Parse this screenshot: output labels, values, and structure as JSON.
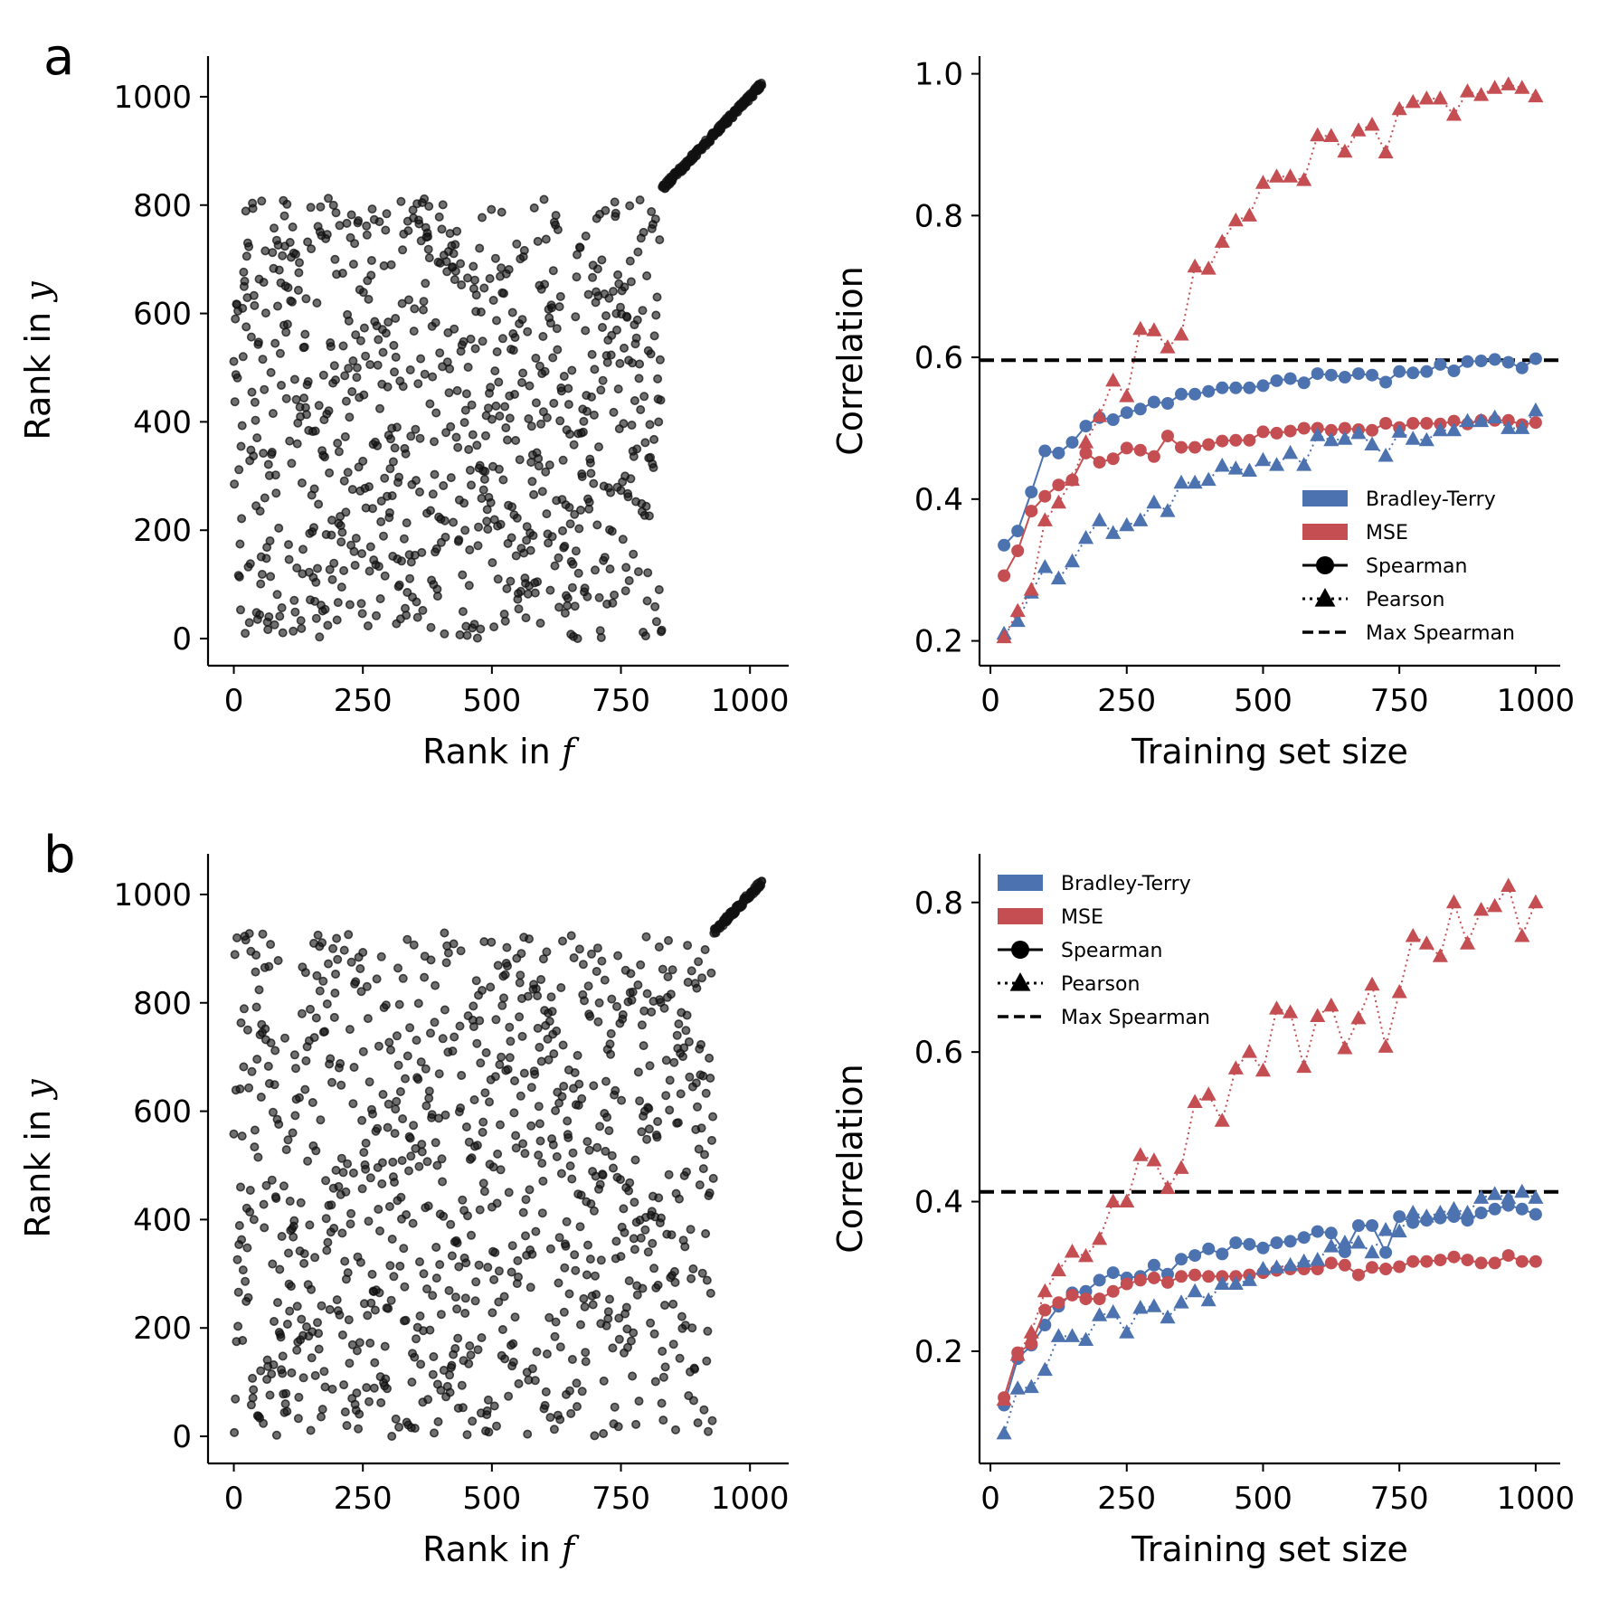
{
  "colors": {
    "bt": "#4c72b0",
    "mse": "#c44e52",
    "scatter": "#111111",
    "maxline": "#000000"
  },
  "chart_data": [
    {
      "type": "scatter",
      "panel_label": "a",
      "xlabel_prefix": "Rank in ",
      "xlabel_var": "f",
      "ylabel_prefix": "Rank in ",
      "ylabel_var": "y",
      "xlim": [
        -50,
        1075
      ],
      "ylim": [
        -50,
        1075
      ],
      "xticks": [
        0,
        250,
        500,
        750,
        1000
      ],
      "yticks": [
        0,
        200,
        400,
        600,
        800,
        1000
      ],
      "n_points": 1024,
      "random_region_max_x": 830,
      "aligned_from": 830
    },
    {
      "type": "line",
      "xlabel": "Training set size",
      "ylabel": "Correlation",
      "xlim": [
        -20,
        1045
      ],
      "ylim": [
        0.165,
        1.025
      ],
      "xticks": [
        0,
        250,
        500,
        750,
        1000
      ],
      "yticks": [
        0.2,
        0.4,
        0.6,
        0.8,
        1.0
      ],
      "max_spearman": 0.596,
      "legend_position": "lower-right",
      "legend": [
        "Bradley-Terry",
        "MSE",
        "Spearman",
        "Pearson",
        "Max Spearman"
      ],
      "x": [
        25,
        50,
        75,
        100,
        125,
        150,
        175,
        200,
        225,
        250,
        275,
        300,
        325,
        350,
        375,
        400,
        425,
        450,
        475,
        500,
        525,
        550,
        575,
        600,
        625,
        650,
        675,
        700,
        725,
        750,
        775,
        800,
        825,
        850,
        875,
        900,
        925,
        950,
        975,
        1000
      ],
      "series": [
        {
          "model": "Bradley-Terry",
          "metric": "Spearman",
          "values": [
            0.335,
            0.355,
            0.41,
            0.468,
            0.465,
            0.48,
            0.503,
            0.515,
            0.512,
            0.522,
            0.527,
            0.537,
            0.535,
            0.548,
            0.548,
            0.552,
            0.557,
            0.557,
            0.557,
            0.56,
            0.567,
            0.57,
            0.564,
            0.577,
            0.575,
            0.572,
            0.577,
            0.575,
            0.565,
            0.58,
            0.578,
            0.58,
            0.59,
            0.581,
            0.594,
            0.595,
            0.597,
            0.593,
            0.585,
            0.598
          ]
        },
        {
          "model": "MSE",
          "metric": "Spearman",
          "values": [
            0.292,
            0.327,
            0.383,
            0.404,
            0.42,
            0.427,
            0.465,
            0.452,
            0.457,
            0.472,
            0.469,
            0.46,
            0.489,
            0.473,
            0.473,
            0.477,
            0.482,
            0.483,
            0.483,
            0.495,
            0.493,
            0.496,
            0.5,
            0.5,
            0.497,
            0.5,
            0.498,
            0.497,
            0.507,
            0.501,
            0.507,
            0.507,
            0.506,
            0.51,
            0.506,
            0.511,
            0.511,
            0.511,
            0.505,
            0.508
          ]
        },
        {
          "model": "Bradley-Terry",
          "metric": "Pearson",
          "values": [
            0.21,
            0.228,
            0.268,
            0.304,
            0.288,
            0.312,
            0.345,
            0.37,
            0.352,
            0.363,
            0.37,
            0.395,
            0.383,
            0.423,
            0.423,
            0.427,
            0.447,
            0.443,
            0.44,
            0.455,
            0.448,
            0.465,
            0.448,
            0.49,
            0.483,
            0.485,
            0.493,
            0.477,
            0.461,
            0.495,
            0.485,
            0.483,
            0.497,
            0.497,
            0.51,
            0.51,
            0.515,
            0.5,
            0.5,
            0.525
          ]
        },
        {
          "model": "MSE",
          "metric": "Pearson",
          "values": [
            0.205,
            0.242,
            0.272,
            0.37,
            0.395,
            0.427,
            0.48,
            0.517,
            0.567,
            0.545,
            0.64,
            0.638,
            0.614,
            0.632,
            0.728,
            0.725,
            0.763,
            0.793,
            0.8,
            0.846,
            0.855,
            0.855,
            0.85,
            0.913,
            0.912,
            0.89,
            0.92,
            0.928,
            0.889,
            0.95,
            0.96,
            0.965,
            0.965,
            0.942,
            0.975,
            0.97,
            0.98,
            0.985,
            0.98,
            0.968
          ]
        }
      ]
    },
    {
      "type": "scatter",
      "panel_label": "b",
      "xlabel_prefix": "Rank in ",
      "xlabel_var": "f",
      "ylabel_prefix": "Rank in ",
      "ylabel_var": "y",
      "xlim": [
        -50,
        1075
      ],
      "ylim": [
        -50,
        1075
      ],
      "xticks": [
        0,
        250,
        500,
        750,
        1000
      ],
      "yticks": [
        0,
        200,
        400,
        600,
        800,
        1000
      ],
      "n_points": 1024,
      "random_region_max_x": 930,
      "aligned_from": 930
    },
    {
      "type": "line",
      "xlabel": "Training set size",
      "ylabel": "Correlation",
      "xlim": [
        -20,
        1045
      ],
      "ylim": [
        0.05,
        0.865
      ],
      "xticks": [
        0,
        250,
        500,
        750,
        1000
      ],
      "yticks": [
        0.2,
        0.4,
        0.6,
        0.8
      ],
      "max_spearman": 0.413,
      "legend_position": "upper-left",
      "legend": [
        "Bradley-Terry",
        "MSE",
        "Spearman",
        "Pearson",
        "Max Spearman"
      ],
      "x": [
        25,
        50,
        75,
        100,
        125,
        150,
        175,
        200,
        225,
        250,
        275,
        300,
        325,
        350,
        375,
        400,
        425,
        450,
        475,
        500,
        525,
        550,
        575,
        600,
        625,
        650,
        675,
        700,
        725,
        750,
        775,
        800,
        825,
        850,
        875,
        900,
        925,
        950,
        975,
        1000
      ],
      "series": [
        {
          "model": "Bradley-Terry",
          "metric": "Spearman",
          "values": [
            0.128,
            0.19,
            0.208,
            0.235,
            0.26,
            0.278,
            0.28,
            0.295,
            0.305,
            0.298,
            0.3,
            0.315,
            0.303,
            0.323,
            0.328,
            0.337,
            0.33,
            0.345,
            0.343,
            0.338,
            0.345,
            0.347,
            0.352,
            0.36,
            0.358,
            0.333,
            0.368,
            0.368,
            0.332,
            0.38,
            0.372,
            0.375,
            0.378,
            0.38,
            0.375,
            0.385,
            0.39,
            0.395,
            0.39,
            0.383
          ]
        },
        {
          "model": "MSE",
          "metric": "Spearman",
          "values": [
            0.138,
            0.198,
            0.21,
            0.255,
            0.265,
            0.275,
            0.27,
            0.27,
            0.28,
            0.29,
            0.295,
            0.298,
            0.292,
            0.3,
            0.302,
            0.3,
            0.3,
            0.3,
            0.302,
            0.305,
            0.308,
            0.31,
            0.31,
            0.31,
            0.318,
            0.315,
            0.302,
            0.312,
            0.31,
            0.313,
            0.32,
            0.32,
            0.322,
            0.326,
            0.322,
            0.318,
            0.318,
            0.328,
            0.32,
            0.32
          ]
        },
        {
          "model": "Bradley-Terry",
          "metric": "Pearson",
          "values": [
            0.09,
            0.15,
            0.152,
            0.175,
            0.22,
            0.22,
            0.215,
            0.248,
            0.252,
            0.225,
            0.258,
            0.26,
            0.245,
            0.265,
            0.28,
            0.268,
            0.29,
            0.29,
            0.295,
            0.31,
            0.312,
            0.315,
            0.32,
            0.322,
            0.34,
            0.345,
            0.345,
            0.332,
            0.362,
            0.36,
            0.385,
            0.38,
            0.385,
            0.39,
            0.385,
            0.405,
            0.41,
            0.405,
            0.413,
            0.405
          ]
        },
        {
          "model": "MSE",
          "metric": "Pearson",
          "values": [
            0.135,
            0.195,
            0.225,
            0.28,
            0.308,
            0.333,
            0.327,
            0.35,
            0.4,
            0.4,
            0.462,
            0.455,
            0.418,
            0.445,
            0.533,
            0.543,
            0.508,
            0.578,
            0.6,
            0.575,
            0.658,
            0.653,
            0.58,
            0.648,
            0.662,
            0.605,
            0.645,
            0.69,
            0.607,
            0.68,
            0.755,
            0.745,
            0.728,
            0.8,
            0.745,
            0.79,
            0.795,
            0.822,
            0.755,
            0.8
          ]
        }
      ]
    }
  ]
}
